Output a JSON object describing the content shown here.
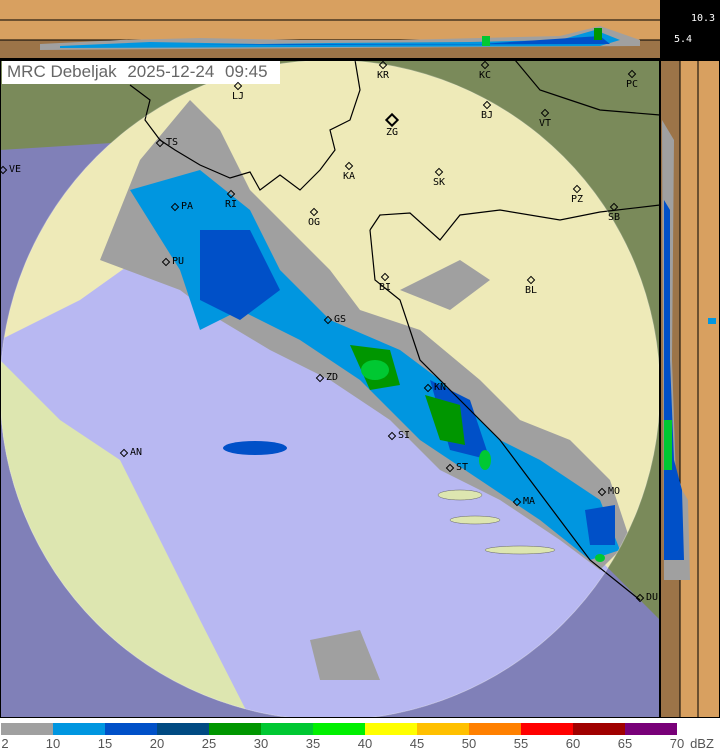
{
  "title": {
    "station": "MRC Debeljak",
    "date": "2025-12-24",
    "time": "09:45"
  },
  "height_labels": {
    "upper_km": "10.3",
    "lower_km": "5.4"
  },
  "cities": [
    {
      "code": "LJ"
    },
    {
      "code": "KR"
    },
    {
      "code": "KC"
    },
    {
      "code": "PC"
    },
    {
      "code": "ZG"
    },
    {
      "code": "BJ"
    },
    {
      "code": "VT"
    },
    {
      "code": "KA"
    },
    {
      "code": "SK"
    },
    {
      "code": "PZ"
    },
    {
      "code": "SB"
    },
    {
      "code": "OG"
    },
    {
      "code": "RI"
    },
    {
      "code": "TS"
    },
    {
      "code": "VE"
    },
    {
      "code": "PA"
    },
    {
      "code": "PU"
    },
    {
      "code": "BI"
    },
    {
      "code": "BL"
    },
    {
      "code": "GS"
    },
    {
      "code": "ZD"
    },
    {
      "code": "KN"
    },
    {
      "code": "SI"
    },
    {
      "code": "ST"
    },
    {
      "code": "MA"
    },
    {
      "code": "MO"
    },
    {
      "code": "DU"
    },
    {
      "code": "AN"
    }
  ],
  "legend": {
    "unit": "dBZ",
    "ticks": [
      "2",
      "10",
      "15",
      "20",
      "25",
      "30",
      "35",
      "40",
      "45",
      "50",
      "55",
      "60",
      "65",
      "70"
    ],
    "colors": [
      "#a0a0a0",
      "#0096e0",
      "#0050c8",
      "#004a82",
      "#009600",
      "#00c832",
      "#00f000",
      "#ffff00",
      "#ffc000",
      "#ff8000",
      "#ff0000",
      "#a00000",
      "#780078"
    ]
  },
  "colors": {
    "land": "#eeeab8",
    "sea": "#b8b8f2",
    "outside_land": "#7a8a5a",
    "outside_sea": "#8080b8",
    "strip_bg": "#d8a060",
    "strip_ground": "#a07848"
  }
}
